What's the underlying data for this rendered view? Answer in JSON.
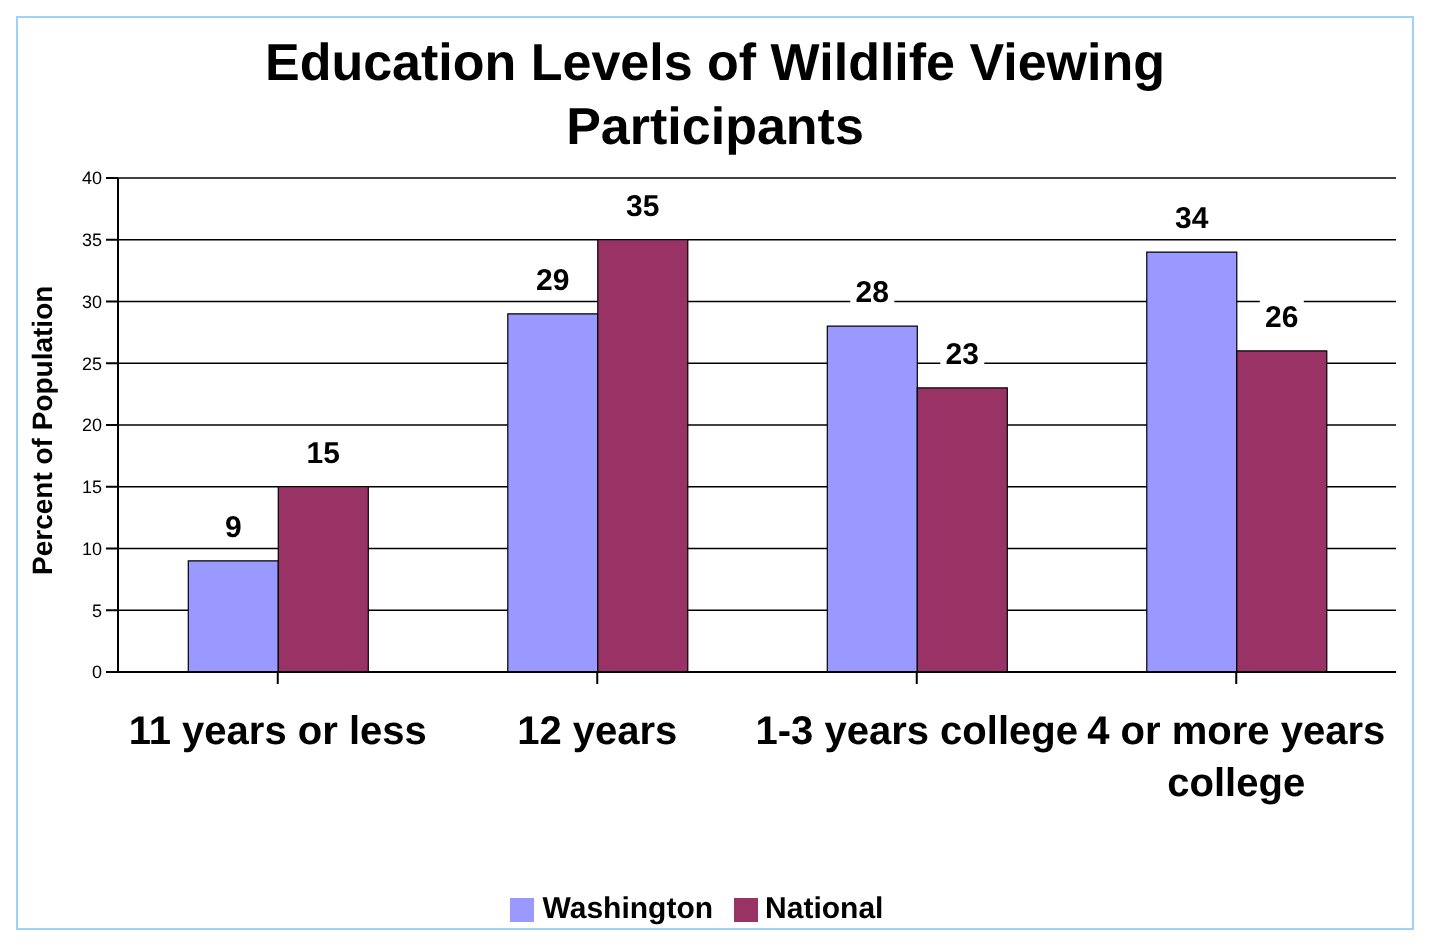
{
  "chart_data": {
    "type": "bar",
    "title": "Education Levels of Wildlife Viewing Participants",
    "ylabel": "Percent of Population",
    "categories": [
      "11 years or less",
      "12 years",
      "1-3 years college",
      "4 or more years college"
    ],
    "series": [
      {
        "name": "Washington",
        "color": "#9999ff",
        "values": [
          9,
          29,
          28,
          34
        ]
      },
      {
        "name": "National",
        "color": "#993366",
        "values": [
          15,
          35,
          23,
          26
        ]
      }
    ],
    "ylim": [
      0,
      40
    ],
    "yticks": [
      0,
      5,
      10,
      15,
      20,
      25,
      30,
      35,
      40
    ],
    "grid": "y",
    "legend": "bottom",
    "data_labels": true
  }
}
